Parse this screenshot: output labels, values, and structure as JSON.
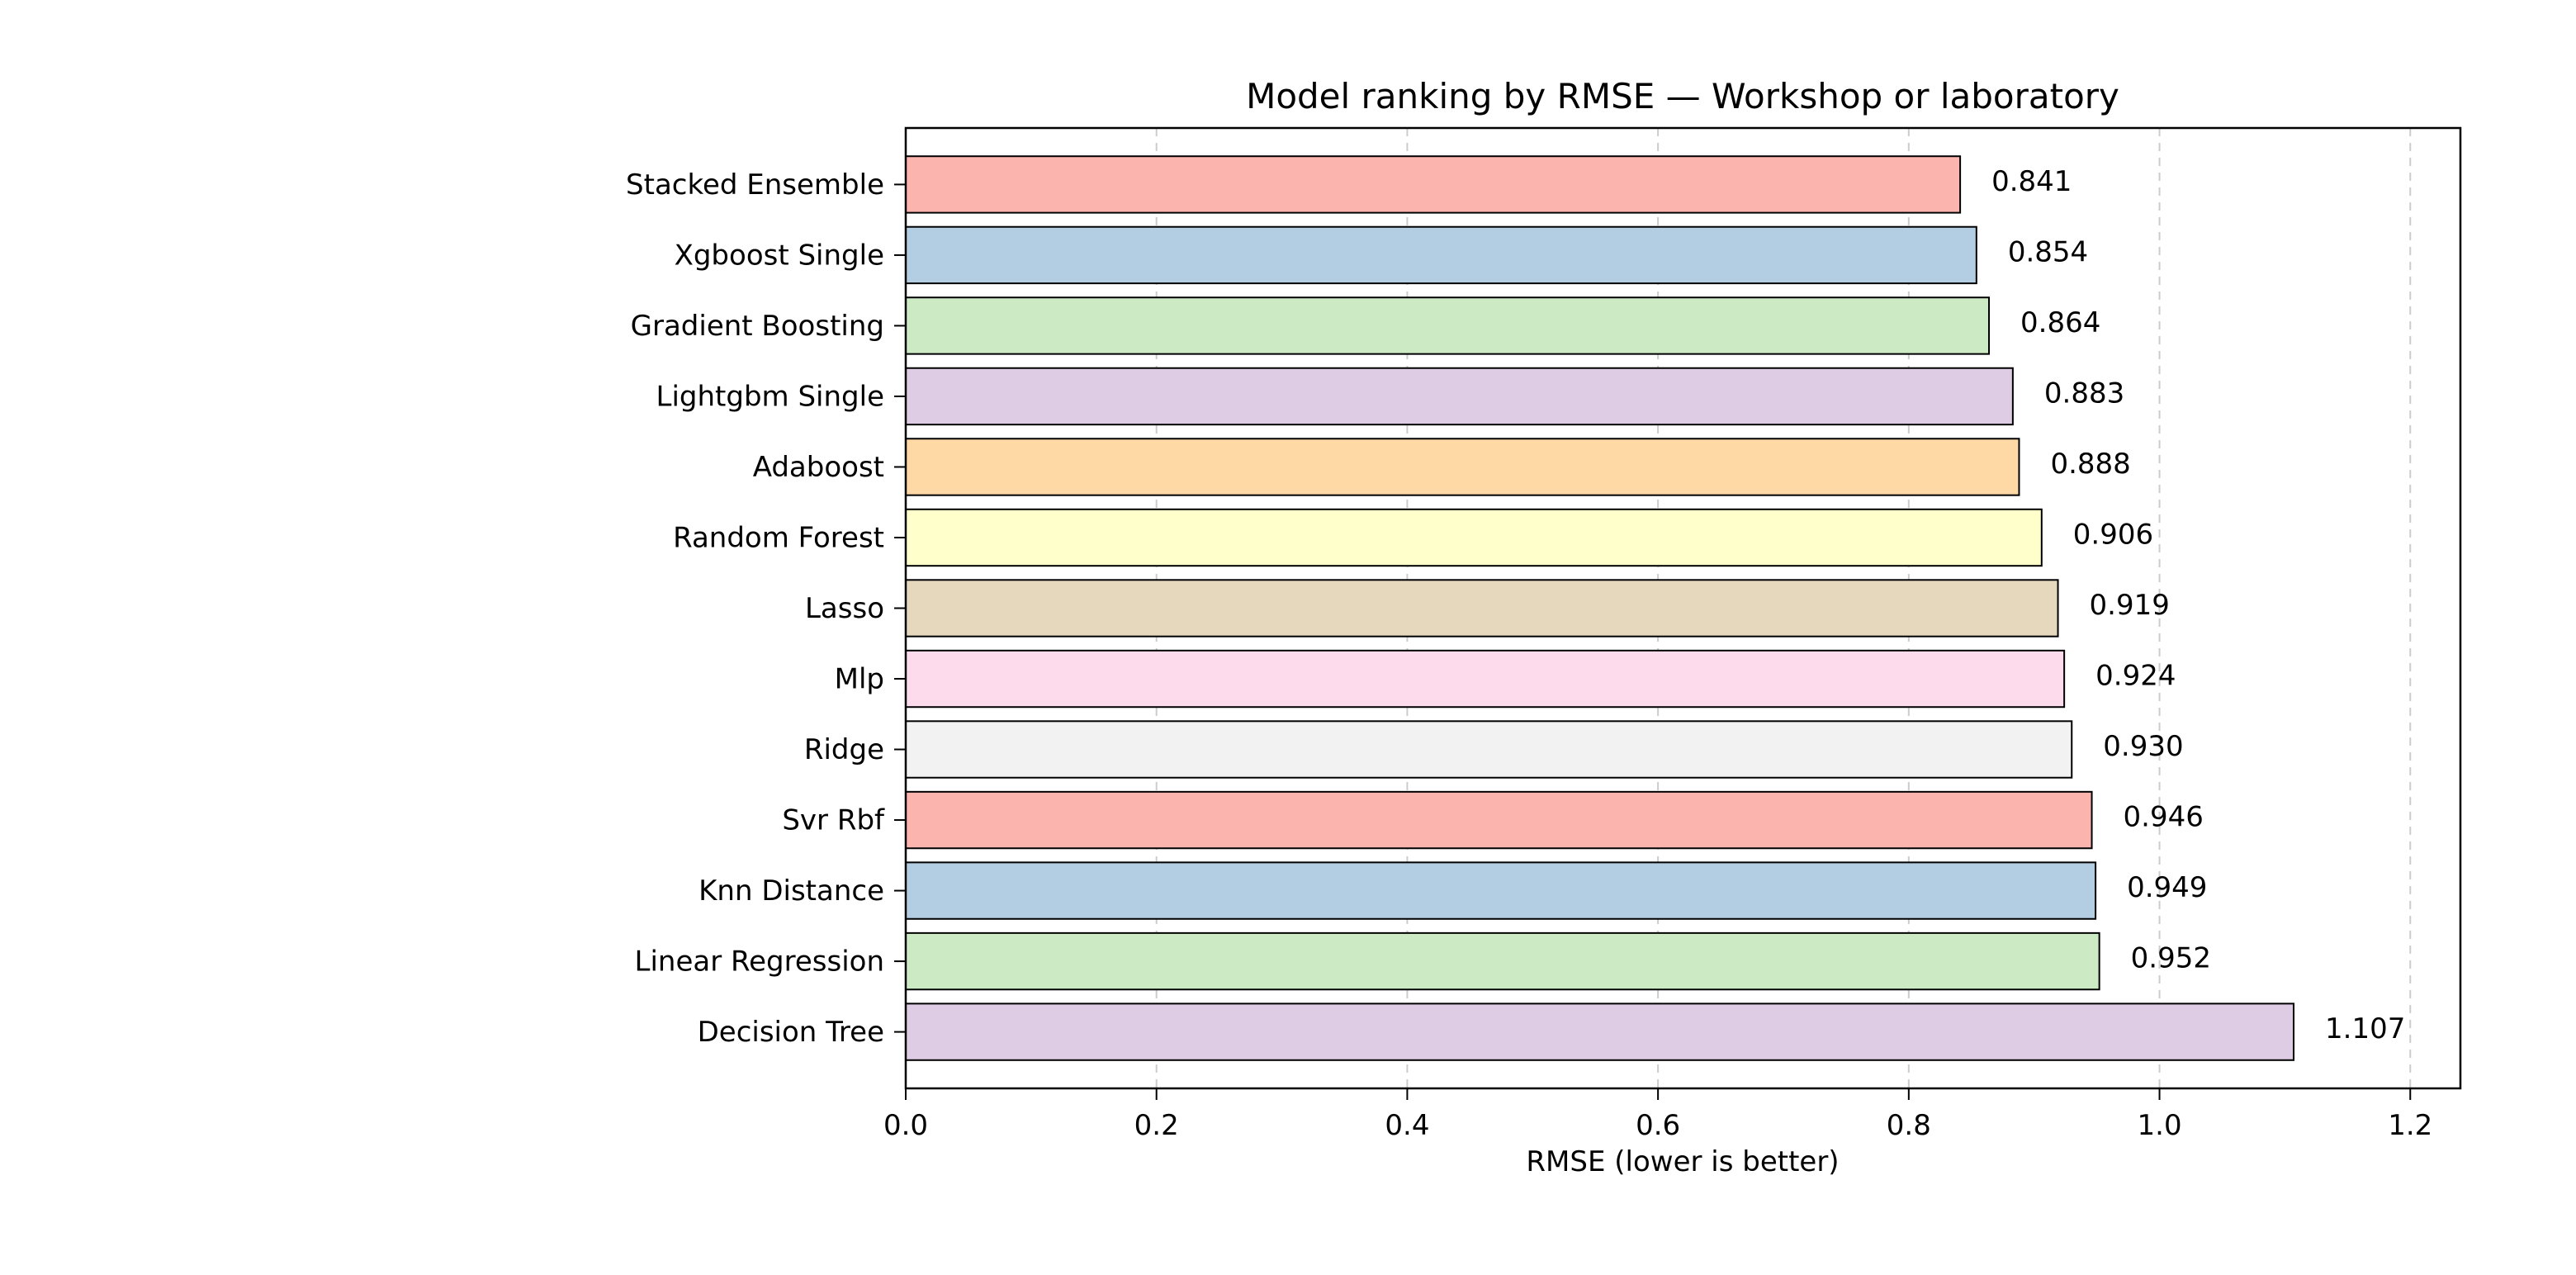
{
  "chart_data": {
    "type": "bar",
    "orientation": "horizontal",
    "title": "Model ranking by RMSE — Workshop or laboratory",
    "xlabel": "RMSE (lower is better)",
    "ylabel": "",
    "xlim": [
      0,
      1.24
    ],
    "xticks": [
      "0.0",
      "0.2",
      "0.4",
      "0.6",
      "0.8",
      "1.0",
      "1.2"
    ],
    "grid": "x dashed",
    "categories": [
      "Stacked Ensemble",
      "Xgboost Single",
      "Gradient Boosting",
      "Lightgbm Single",
      "Adaboost",
      "Random Forest",
      "Lasso",
      "Mlp",
      "Ridge",
      "Svr Rbf",
      "Knn Distance",
      "Linear Regression",
      "Decision Tree"
    ],
    "values": [
      0.841,
      0.854,
      0.864,
      0.883,
      0.888,
      0.906,
      0.919,
      0.924,
      0.93,
      0.946,
      0.949,
      0.952,
      1.107
    ],
    "value_labels": [
      "0.841",
      "0.854",
      "0.864",
      "0.883",
      "0.888",
      "0.906",
      "0.919",
      "0.924",
      "0.930",
      "0.946",
      "0.949",
      "0.952",
      "1.107"
    ],
    "colors": [
      "#fbb4ae",
      "#b3cde3",
      "#ccebc5",
      "#decbe4",
      "#fed9a6",
      "#ffffcc",
      "#e5d8bd",
      "#fddaec",
      "#f2f2f2",
      "#fbb4ae",
      "#b3cde3",
      "#ccebc5",
      "#decbe4"
    ]
  }
}
